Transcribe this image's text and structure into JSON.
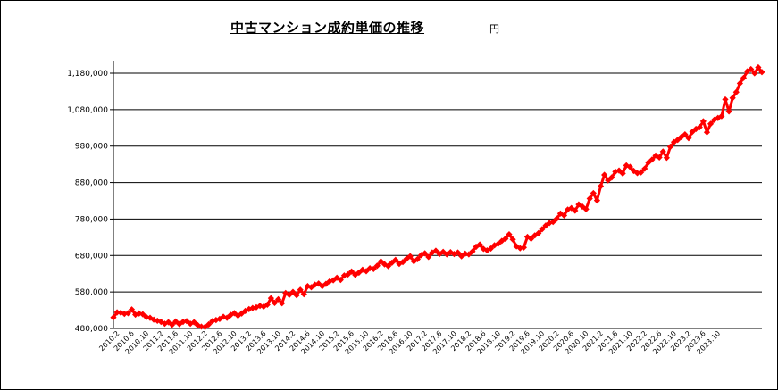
{
  "chart_data": {
    "type": "line",
    "title": "中古マンション成約単価の推移",
    "unit": "円",
    "xlabel": "",
    "ylabel": "",
    "ylim": [
      480000,
      1180000
    ],
    "yticks": [
      480000,
      580000,
      680000,
      780000,
      880000,
      980000,
      1080000,
      1180000
    ],
    "ytick_labels": [
      "480,000",
      "580,000",
      "680,000",
      "780,000",
      "880,000",
      "980,000",
      "1,080,000",
      "1,180,000"
    ],
    "grid": true,
    "legend": "none",
    "series_color": "#ff0000",
    "x_start": "2010.1",
    "x_end": "2023.10",
    "x_tick_labels": [
      "2010.2",
      "2010.6",
      "2010.10",
      "2011.2",
      "2011.6",
      "2011.10",
      "2012.2",
      "2012.6",
      "2012.10",
      "2013.2",
      "2013.6",
      "2013.10",
      "2014.2",
      "2014.6",
      "2014.10",
      "2015.2",
      "2015.6",
      "2015.10",
      "2016.2",
      "2016.6",
      "2016.10",
      "2017.2",
      "2017.6",
      "2017.10",
      "2018.2",
      "2018.6",
      "2018.10",
      "2019.2",
      "2019.6",
      "2019.10",
      "2020.2",
      "2020.6",
      "2020.10",
      "2021.2",
      "2021.6",
      "2021.10",
      "2022.2",
      "2022.6",
      "2022.10",
      "2023.2",
      "2023.6",
      "2023.10"
    ],
    "series": [
      {
        "values": [
          510000,
          524000,
          523000,
          520000,
          522000,
          532000,
          518000,
          521000,
          519000,
          511000,
          509000,
          504000,
          501000,
          498000,
          493000,
          497000,
          490000,
          499000,
          492000,
          498000,
          500000,
          493000,
          497000,
          489000,
          485000,
          484000,
          491000,
          500000,
          503000,
          506000,
          512000,
          509000,
          517000,
          522000,
          515000,
          521000,
          528000,
          533000,
          536000,
          538000,
          542000,
          540000,
          545000,
          563000,
          550000,
          560000,
          549000,
          577000,
          572000,
          580000,
          571000,
          586000,
          574000,
          596000,
          593000,
          600000,
          603000,
          596000,
          602000,
          609000,
          612000,
          619000,
          613000,
          625000,
          628000,
          636000,
          627000,
          633000,
          641000,
          637000,
          645000,
          643000,
          652000,
          664000,
          656000,
          651000,
          660000,
          668000,
          657000,
          662000,
          671000,
          678000,
          664000,
          670000,
          681000,
          686000,
          676000,
          688000,
          693000,
          684000,
          690000,
          683000,
          689000,
          684000,
          688000,
          678000,
          685000,
          683000,
          691000,
          704000,
          710000,
          698000,
          694000,
          699000,
          708000,
          712000,
          720000,
          726000,
          738000,
          724000,
          705000,
          700000,
          702000,
          731000,
          726000,
          735000,
          741000,
          752000,
          762000,
          769000,
          772000,
          781000,
          795000,
          790000,
          806000,
          810000,
          803000,
          820000,
          814000,
          807000,
          836000,
          851000,
          831000,
          870000,
          901000,
          886000,
          894000,
          910000,
          913000,
          905000,
          927000,
          923000,
          912000,
          906000,
          908000,
          918000,
          935000,
          943000,
          954000,
          949000,
          965000,
          948000,
          978000,
          991000,
          997000,
          1005000,
          1012000,
          1002000,
          1019000,
          1027000,
          1032000,
          1048000,
          1018000,
          1041000,
          1052000,
          1057000,
          1062000,
          1108000,
          1075000,
          1112000,
          1128000,
          1152000,
          1167000,
          1185000,
          1191000,
          1180000,
          1196000,
          1183000
        ]
      }
    ]
  }
}
